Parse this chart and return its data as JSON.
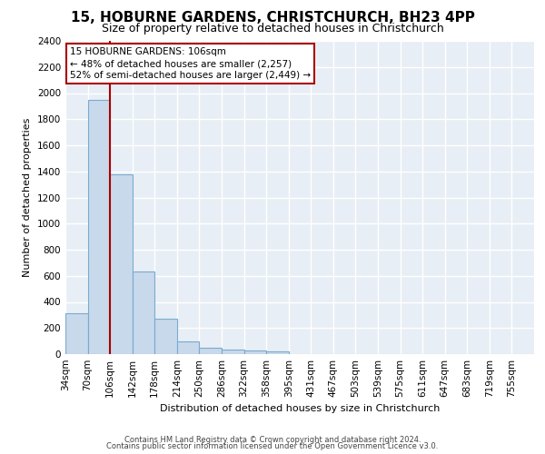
{
  "title_line1": "15, HOBURNE GARDENS, CHRISTCHURCH, BH23 4PP",
  "title_line2": "Size of property relative to detached houses in Christchurch",
  "xlabel": "Distribution of detached houses by size in Christchurch",
  "ylabel": "Number of detached properties",
  "footer_line1": "Contains HM Land Registry data © Crown copyright and database right 2024.",
  "footer_line2": "Contains public sector information licensed under the Open Government Licence v3.0.",
  "annotation_line1": "15 HOBURNE GARDENS: 106sqm",
  "annotation_line2": "← 48% of detached houses are smaller (2,257)",
  "annotation_line3": "52% of semi-detached houses are larger (2,449) →",
  "bar_labels": [
    "34sqm",
    "70sqm",
    "106sqm",
    "142sqm",
    "178sqm",
    "214sqm",
    "250sqm",
    "286sqm",
    "322sqm",
    "358sqm",
    "395sqm",
    "431sqm",
    "467sqm",
    "503sqm",
    "539sqm",
    "575sqm",
    "611sqm",
    "647sqm",
    "683sqm",
    "719sqm",
    "755sqm"
  ],
  "bar_values": [
    315,
    1950,
    1380,
    630,
    270,
    100,
    47,
    35,
    28,
    20,
    0,
    0,
    0,
    0,
    0,
    0,
    0,
    0,
    0,
    0,
    0
  ],
  "bar_color": "#c8d9ec",
  "bar_edge_color": "#7aaace",
  "vline_x_index": 2,
  "vline_color": "#aa0000",
  "annotation_box_color": "#aa0000",
  "background_color": "#e8eef5",
  "grid_color": "#ffffff",
  "ylim": [
    0,
    2400
  ],
  "yticks": [
    0,
    200,
    400,
    600,
    800,
    1000,
    1200,
    1400,
    1600,
    1800,
    2000,
    2200,
    2400
  ],
  "title_fontsize": 11,
  "subtitle_fontsize": 9,
  "ylabel_fontsize": 8,
  "xlabel_fontsize": 8,
  "tick_fontsize": 7.5,
  "annotation_fontsize": 7.5
}
